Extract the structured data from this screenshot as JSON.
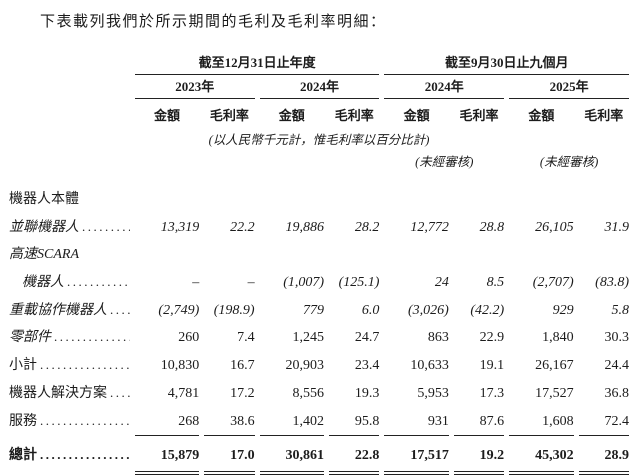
{
  "title": "下表載列我們於所示期間的毛利及毛利率明細：",
  "table": {
    "groups": [
      {
        "label": "截至12月31日止年度",
        "years": [
          "2023年",
          "2024年"
        ]
      },
      {
        "label": "截至9月30日止九個月",
        "years": [
          "2024年",
          "2025年"
        ]
      }
    ],
    "col_headers": {
      "amount": "金額",
      "margin": "毛利率"
    },
    "notes": {
      "units": "(以人民幣千元計，惟毛利率以百分比計)",
      "unaudited": "(未經審核)"
    },
    "leader": "......................................................",
    "rows": [
      {
        "label": "機器人本體",
        "style": "section",
        "dots": false,
        "values": []
      },
      {
        "label": "並聯機器人",
        "style": "item-italic",
        "dots": true,
        "values": [
          "13,319",
          "22.2",
          "19,886",
          "28.2",
          "12,772",
          "28.8",
          "26,105",
          "31.9"
        ]
      },
      {
        "label": "高速SCARA",
        "style": "section-italic",
        "dots": false,
        "values": []
      },
      {
        "label": "機器人",
        "style": "item-italic",
        "indent": true,
        "dots": true,
        "values": [
          "–",
          "–",
          "(1,007)",
          "(125.1)",
          "24",
          "8.5",
          "(2,707)",
          "(83.8)"
        ]
      },
      {
        "label": "重載協作機器人",
        "style": "item-italic",
        "dots": true,
        "values": [
          "(2,749)",
          "(198.9)",
          "779",
          "6.0",
          "(3,026)",
          "(42.2)",
          "929",
          "5.8"
        ]
      },
      {
        "label": "零部件",
        "style": "item-label-italic",
        "dots": true,
        "values": [
          "260",
          "7.4",
          "1,245",
          "24.7",
          "863",
          "22.9",
          "1,840",
          "30.3"
        ]
      },
      {
        "label": "小計",
        "style": "item",
        "dots": true,
        "values": [
          "10,830",
          "16.7",
          "20,903",
          "23.4",
          "10,633",
          "19.1",
          "26,167",
          "24.4"
        ]
      },
      {
        "label": "機器人解決方案",
        "style": "item",
        "dots": true,
        "values": [
          "4,781",
          "17.2",
          "8,556",
          "19.3",
          "5,953",
          "17.3",
          "17,527",
          "36.8"
        ]
      },
      {
        "label": "服務",
        "style": "item",
        "dots": true,
        "underline": "single",
        "values": [
          "268",
          "38.6",
          "1,402",
          "95.8",
          "931",
          "87.6",
          "1,608",
          "72.4"
        ]
      },
      {
        "label": "總計",
        "style": "total",
        "dots": true,
        "underline": "double",
        "values": [
          "15,879",
          "17.0",
          "30,861",
          "22.8",
          "17,517",
          "19.2",
          "45,302",
          "28.9"
        ]
      }
    ]
  }
}
